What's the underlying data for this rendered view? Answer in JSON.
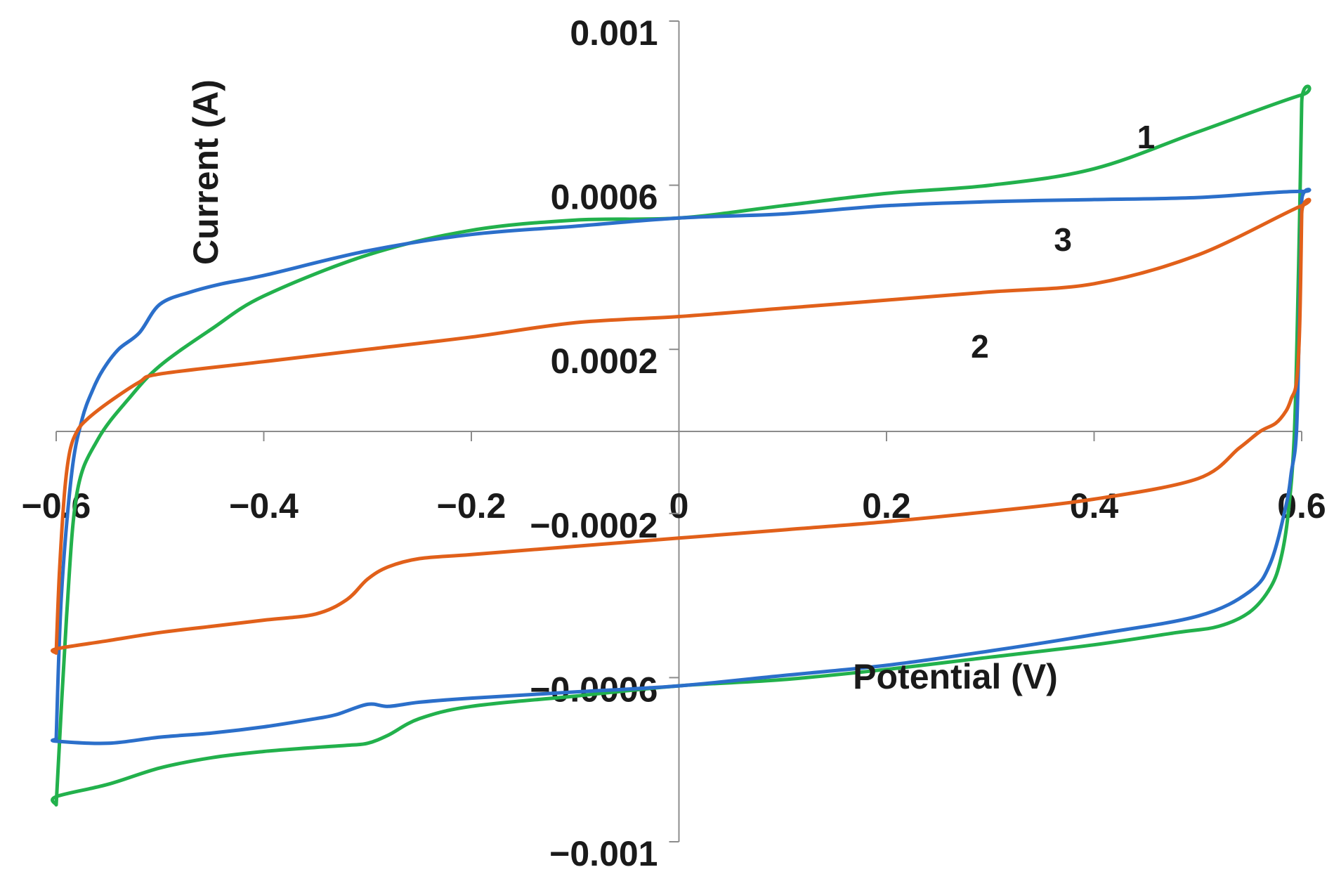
{
  "chart_data": {
    "type": "line",
    "title": "",
    "xlabel": "Potential (V)",
    "ylabel": "Current (A)",
    "xlim": [
      -0.6,
      0.6
    ],
    "ylim": [
      -0.001,
      0.001
    ],
    "x_ticks": [
      -0.6,
      -0.4,
      -0.2,
      0,
      0.2,
      0.4,
      0.6
    ],
    "x_tick_labels": [
      "−0.6",
      "−0.4",
      "−0.2",
      "0",
      "0.2",
      "0.4",
      "0.6"
    ],
    "y_ticks": [
      0.001,
      0.0006,
      0.0002,
      -0.0002,
      -0.0006,
      -0.001
    ],
    "y_tick_labels": [
      "0.001",
      "0.0006",
      "0.0002",
      "−0.0002",
      "−0.0006",
      "−0.001"
    ],
    "grid": false,
    "annotations": [
      {
        "text": "1",
        "x": 0.45,
        "y": 0.00069
      },
      {
        "text": "3",
        "x": 0.37,
        "y": 0.00044
      },
      {
        "text": "2",
        "x": 0.29,
        "y": 0.00018
      }
    ],
    "series": [
      {
        "name": "1",
        "color": "#22b14c",
        "x": [
          -0.6,
          -0.59,
          -0.58,
          -0.56,
          -0.53,
          -0.5,
          -0.45,
          -0.4,
          -0.3,
          -0.2,
          -0.1,
          0.0,
          0.1,
          0.2,
          0.3,
          0.4,
          0.5,
          0.6,
          0.6,
          0.597,
          0.593,
          0.587,
          0.58,
          0.57,
          0.55,
          0.52,
          0.48,
          0.4,
          0.3,
          0.2,
          0.1,
          0.0,
          -0.1,
          -0.2,
          -0.25,
          -0.28,
          -0.3,
          -0.32,
          -0.35,
          -0.4,
          -0.45,
          -0.5,
          -0.55,
          -0.6,
          -0.6
        ],
        "y": [
          -0.00091,
          -0.00045,
          -0.00015,
          -2e-05,
          8e-05,
          0.00016,
          0.00025,
          0.00033,
          0.00043,
          0.00049,
          0.000515,
          0.00052,
          0.00055,
          0.00058,
          0.0006,
          0.00064,
          0.00073,
          0.00082,
          0.0008,
          0.0004,
          0.0,
          -0.0002,
          -0.00031,
          -0.00038,
          -0.00044,
          -0.000475,
          -0.00049,
          -0.00052,
          -0.00055,
          -0.00058,
          -0.000605,
          -0.00062,
          -0.000645,
          -0.00067,
          -0.0007,
          -0.00074,
          -0.00076,
          -0.000765,
          -0.00077,
          -0.00078,
          -0.000795,
          -0.00082,
          -0.00086,
          -0.00089,
          -0.00091
        ]
      },
      {
        "name": "2",
        "color": "#2b6fca",
        "x": [
          -0.6,
          -0.595,
          -0.585,
          -0.575,
          -0.565,
          -0.555,
          -0.54,
          -0.52,
          -0.5,
          -0.47,
          -0.44,
          -0.4,
          -0.3,
          -0.2,
          -0.1,
          0.0,
          0.1,
          0.2,
          0.3,
          0.4,
          0.5,
          0.6,
          0.6,
          0.598,
          0.595,
          0.59,
          0.585,
          0.57,
          0.55,
          0.5,
          0.4,
          0.3,
          0.2,
          0.1,
          0.0,
          -0.1,
          -0.2,
          -0.25,
          -0.28,
          -0.3,
          -0.33,
          -0.35,
          -0.4,
          -0.45,
          -0.5,
          -0.55,
          -0.6,
          -0.6
        ],
        "y": [
          -0.00075,
          -0.0004,
          -0.0001,
          3e-05,
          0.0001,
          0.00015,
          0.0002,
          0.00024,
          0.00031,
          0.00034,
          0.00036,
          0.00038,
          0.00044,
          0.00048,
          0.0005,
          0.00052,
          0.00053,
          0.00055,
          0.00056,
          0.000565,
          0.00057,
          0.000585,
          0.00056,
          0.0003,
          0.0,
          -0.0001,
          -0.00018,
          -0.00032,
          -0.00039,
          -0.00045,
          -0.000495,
          -0.000535,
          -0.00057,
          -0.000595,
          -0.00062,
          -0.000635,
          -0.00065,
          -0.00066,
          -0.00067,
          -0.000665,
          -0.00069,
          -0.0007,
          -0.00072,
          -0.000735,
          -0.000745,
          -0.00076,
          -0.000755,
          -0.00075
        ]
      },
      {
        "name": "3",
        "color": "#e1601a",
        "x": [
          -0.6,
          -0.597,
          -0.592,
          -0.587,
          -0.58,
          -0.57,
          -0.55,
          -0.52,
          -0.5,
          -0.4,
          -0.3,
          -0.2,
          -0.1,
          0.0,
          0.1,
          0.2,
          0.3,
          0.4,
          0.5,
          0.6,
          0.6,
          0.598,
          0.595,
          0.59,
          0.585,
          0.575,
          0.56,
          0.54,
          0.5,
          0.4,
          0.3,
          0.2,
          0.1,
          0.0,
          -0.1,
          -0.2,
          -0.25,
          -0.28,
          -0.3,
          -0.32,
          -0.35,
          -0.4,
          -0.45,
          -0.5,
          -0.55,
          -0.6,
          -0.6
        ],
        "y": [
          -0.00054,
          -0.00035,
          -0.00015,
          -5e-05,
          0.0,
          3e-05,
          7e-05,
          0.00012,
          0.00014,
          0.00017,
          0.0002,
          0.00023,
          0.000265,
          0.00028,
          0.0003,
          0.00032,
          0.00034,
          0.00036,
          0.00043,
          0.00055,
          0.00053,
          0.00025,
          0.00012,
          8e-05,
          5e-05,
          2e-05,
          0.0,
          -4e-05,
          -0.000115,
          -0.000165,
          -0.000195,
          -0.00022,
          -0.00024,
          -0.00026,
          -0.00028,
          -0.0003,
          -0.00031,
          -0.00033,
          -0.00036,
          -0.00041,
          -0.000445,
          -0.00046,
          -0.000475,
          -0.00049,
          -0.00051,
          -0.00053,
          -0.00054
        ]
      }
    ]
  }
}
